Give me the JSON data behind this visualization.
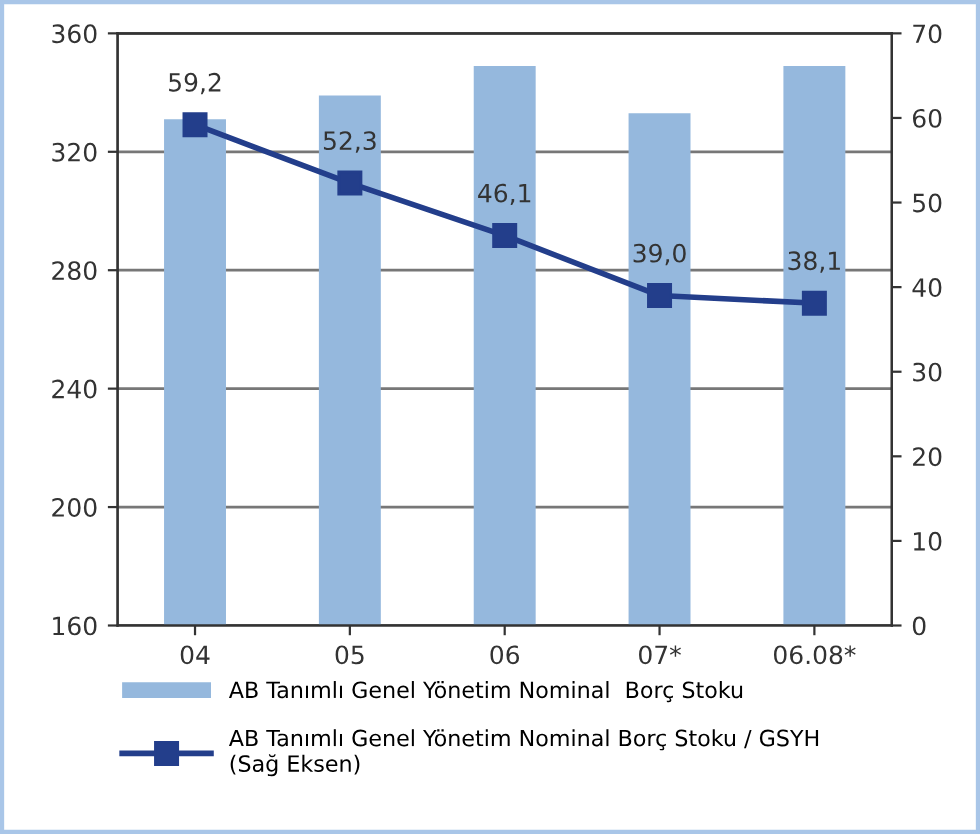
{
  "chart_data": {
    "type": "bar",
    "categories": [
      "04",
      "05",
      "06",
      "07*",
      "06.08*"
    ],
    "series": [
      {
        "name": "AB Tanımlı Genel Yönetim Nominal  Borç Stoku",
        "color": "#95b8dd",
        "values": [
          331,
          339,
          349,
          333,
          349
        ]
      },
      {
        "name": "AB Tanımlı Genel Yönetim Nominal Borç Stoku / GSYH\n(Sağ Eksen)",
        "type": "line",
        "axis": "y2",
        "color": "#233e8b",
        "values": [
          59.2,
          52.3,
          46.1,
          39.0,
          38.1
        ],
        "value_labels": [
          "59,2",
          "52,3",
          "46,1",
          "39,0",
          "38,1"
        ],
        "marker": "square"
      }
    ],
    "ylim": [
      160,
      360
    ],
    "yticks": [
      160,
      200,
      240,
      280,
      320,
      360
    ],
    "y2lim": [
      0,
      70
    ],
    "y2ticks": [
      0,
      10,
      20,
      30,
      40,
      50,
      60,
      70
    ],
    "grid": "y",
    "legend": "bottom"
  }
}
